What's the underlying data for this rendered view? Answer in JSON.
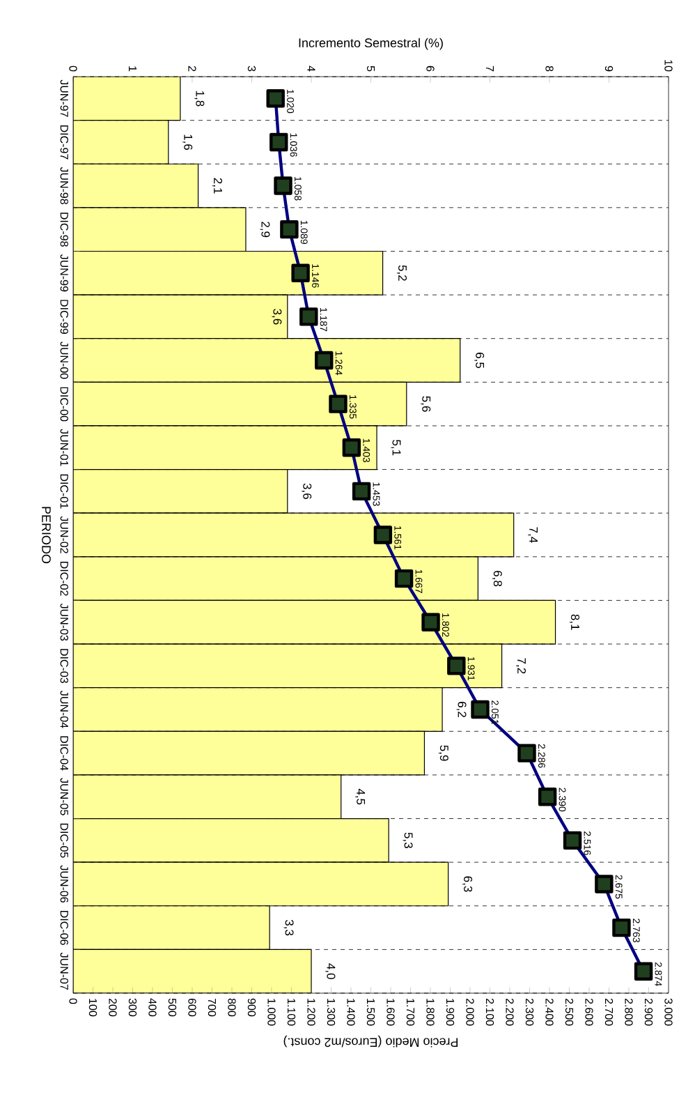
{
  "chart_data": {
    "type": "bar",
    "orientation": "horizontal",
    "xlabel": "Precio Medio (Euros/m2 const.)",
    "x2label": "Incremento Semestral (%)",
    "ylabel": "PERIODO",
    "categories": [
      "JUN-97",
      "DIC-97",
      "JUN-98",
      "DIC-98",
      "JUN-99",
      "DIC-99",
      "JUN-00",
      "DIC-00",
      "JUN-01",
      "DIC-01",
      "JUN-02",
      "DIC-02",
      "JUN-03",
      "DIC-03",
      "JUN-04",
      "DIC-04",
      "JUN-05",
      "DIC-05",
      "JUN-06",
      "DIC-06",
      "JUN-07"
    ],
    "x2lim": [
      0,
      10
    ],
    "x2ticks": [
      0,
      1,
      2,
      3,
      4,
      5,
      6,
      7,
      8,
      9,
      10
    ],
    "xlim": [
      0,
      3000
    ],
    "xticks": [
      0,
      100,
      200,
      300,
      400,
      500,
      600,
      700,
      800,
      900,
      {
        "value": 1000,
        "label": "1.000"
      },
      {
        "value": 1100,
        "label": "1.100"
      },
      {
        "value": 1200,
        "label": "1.200"
      },
      {
        "value": 1300,
        "label": "1.300"
      },
      {
        "value": 1400,
        "label": "1.400"
      },
      {
        "value": 1500,
        "label": "1.500"
      },
      {
        "value": 1600,
        "label": "1.600"
      },
      {
        "value": 1700,
        "label": "1.700"
      },
      {
        "value": 1800,
        "label": "1.800"
      },
      {
        "value": 1900,
        "label": "1.900"
      },
      {
        "value": 2000,
        "label": "2.000"
      },
      {
        "value": 2100,
        "label": "2.100"
      },
      {
        "value": 2200,
        "label": "2.200"
      },
      {
        "value": 2300,
        "label": "2.300"
      },
      {
        "value": 2400,
        "label": "2.400"
      },
      {
        "value": 2500,
        "label": "2.500"
      },
      {
        "value": 2600,
        "label": "2.600"
      },
      {
        "value": 2700,
        "label": "2.700"
      },
      {
        "value": 2800,
        "label": "2.800"
      },
      {
        "value": 2900,
        "label": "2.900"
      },
      {
        "value": 3000,
        "label": "3.000"
      }
    ],
    "grid": "y",
    "series": [
      {
        "axis": "x2",
        "color": "#ffff99",
        "values": [
          1.8,
          1.6,
          2.1,
          2.9,
          5.2,
          3.6,
          6.5,
          5.6,
          5.1,
          3.6,
          7.4,
          6.8,
          8.1,
          7.2,
          6.2,
          5.9,
          4.5,
          5.3,
          6.3,
          3.3,
          4.0
        ],
        "value_labels": [
          "1,8",
          "1,6",
          "2,1",
          "2,9",
          "5,2",
          "3,6",
          "6,5",
          "5,6",
          "5,1",
          "3,6",
          "7,4",
          "6,8",
          "8,1",
          "7,2",
          "6,2",
          "5,9",
          "4,5",
          "5,3",
          "6,3",
          "3,3",
          "4,0"
        ]
      },
      {
        "type": "line",
        "color": "#000080",
        "marker": "square",
        "values": [
          1020,
          1036,
          1058,
          1089,
          1146,
          1187,
          1264,
          1335,
          1403,
          1453,
          1561,
          1667,
          1802,
          1931,
          2051,
          2286,
          2390,
          2516,
          2675,
          2763,
          2874
        ],
        "value_labels": [
          "1.020",
          "1.036",
          "1.058",
          "1.089",
          "1.146",
          "1.187",
          "1.264",
          "1.335",
          "1.403",
          "1.453",
          "1.561",
          "1.667",
          "1.802",
          "1.931",
          "2.051",
          "2.286",
          "2.390",
          "2.516",
          "2.675",
          "2.763",
          "2.874"
        ]
      }
    ]
  }
}
